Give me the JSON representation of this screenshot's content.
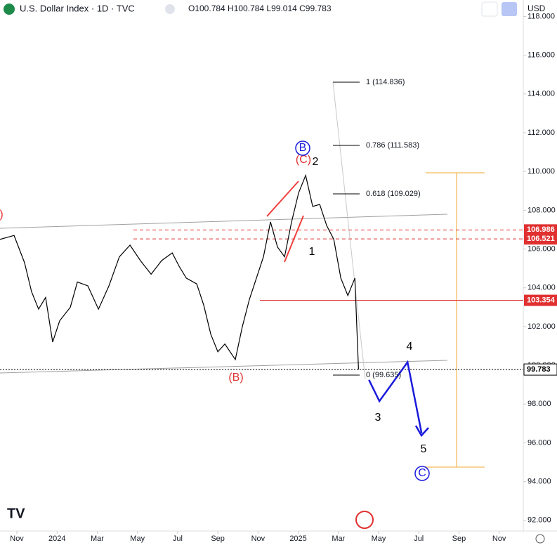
{
  "header": {
    "symbol": "U.S. Dollar Index · 1D · TVC",
    "ohlc": "O100.784 H100.784 L99.014 C99.783",
    "currency": "USD"
  },
  "chart_data": {
    "type": "line",
    "xlim": [
      -0.84,
      25.2
    ],
    "xticks": [
      {
        "value": 0,
        "label": "Nov"
      },
      {
        "value": 2,
        "label": "2024"
      },
      {
        "value": 4,
        "label": "Mar"
      },
      {
        "value": 6,
        "label": "May"
      },
      {
        "value": 8,
        "label": "Jul"
      },
      {
        "value": 10,
        "label": "Sep"
      },
      {
        "value": 12,
        "label": "Nov"
      },
      {
        "value": 14,
        "label": "2025"
      },
      {
        "value": 16,
        "label": "Mar"
      },
      {
        "value": 18,
        "label": "May"
      },
      {
        "value": 20,
        "label": "Jul"
      },
      {
        "value": 22,
        "label": "Sep"
      },
      {
        "value": 24,
        "label": "Nov"
      }
    ],
    "ylim": [
      91.45,
      118.85
    ],
    "yticks": [
      {
        "value": 92,
        "label": "92.000"
      },
      {
        "value": 94,
        "label": "94.000"
      },
      {
        "value": 96,
        "label": "96.000"
      },
      {
        "value": 98,
        "label": "98.000"
      },
      {
        "value": 100,
        "label": "100.000"
      },
      {
        "value": 102,
        "label": "102.000"
      },
      {
        "value": 104,
        "label": "104.000"
      },
      {
        "value": 106,
        "label": "106.000"
      },
      {
        "value": 108,
        "label": "108.000"
      },
      {
        "value": 110,
        "label": "110.000"
      },
      {
        "value": 112,
        "label": "112.000"
      },
      {
        "value": 114,
        "label": "114.000"
      },
      {
        "value": 116,
        "label": "116.000"
      },
      {
        "value": 118,
        "label": "118.000"
      }
    ],
    "series": [
      {
        "name": "price",
        "color": "#000000",
        "x": [
          -0.84,
          -0.14,
          0.38,
          0.73,
          1.08,
          1.43,
          1.78,
          2.13,
          2.66,
          3.01,
          3.53,
          4.06,
          4.58,
          5.1,
          5.63,
          6.15,
          6.68,
          7.2,
          7.73,
          8.08,
          8.43,
          8.95,
          9.3,
          9.65,
          10.0,
          10.35,
          10.87,
          11.22,
          11.57,
          11.92,
          12.27,
          12.62,
          12.97,
          13.32,
          13.67,
          14.02,
          14.37,
          14.72,
          15.07,
          15.42,
          15.77,
          16.12,
          16.47,
          16.82,
          17.0
        ],
        "values": [
          106.5,
          106.7,
          105.3,
          103.8,
          102.9,
          103.5,
          101.2,
          102.3,
          103.0,
          104.3,
          104.1,
          102.9,
          104.1,
          105.6,
          106.2,
          105.4,
          104.7,
          105.4,
          105.8,
          105.1,
          104.5,
          104.2,
          103.1,
          101.6,
          100.7,
          101.1,
          100.3,
          102.0,
          103.4,
          104.5,
          105.6,
          107.4,
          106.1,
          105.6,
          107.4,
          108.9,
          109.8,
          108.2,
          108.3,
          107.2,
          106.5,
          104.5,
          103.6,
          104.5,
          99.783
        ]
      },
      {
        "name": "projection",
        "color": "#1a1adb",
        "x": [
          17.52,
          18.04,
          19.44,
          20.14
        ],
        "values": [
          99.25,
          98.15,
          100.16,
          96.5
        ]
      }
    ],
    "price_lines": [
      {
        "value": 106.986,
        "color": "#e03030",
        "style": "dashed"
      },
      {
        "value": 106.521,
        "color": "#e03030",
        "style": "dashed"
      },
      {
        "value": 103.354,
        "color": "#e03030",
        "style": "solid"
      },
      {
        "value": 99.783,
        "color": "#000000",
        "style": "dotted"
      }
    ],
    "fib_labels": [
      "1 (114.836)",
      "0.786 (111.583)",
      "0.618 (109.029)",
      "0 (99.635)"
    ],
    "wave_labels": [
      "(A)",
      "(B)",
      "(C)",
      "B",
      "2",
      "1",
      "3",
      "4",
      "5",
      "C"
    ]
  }
}
